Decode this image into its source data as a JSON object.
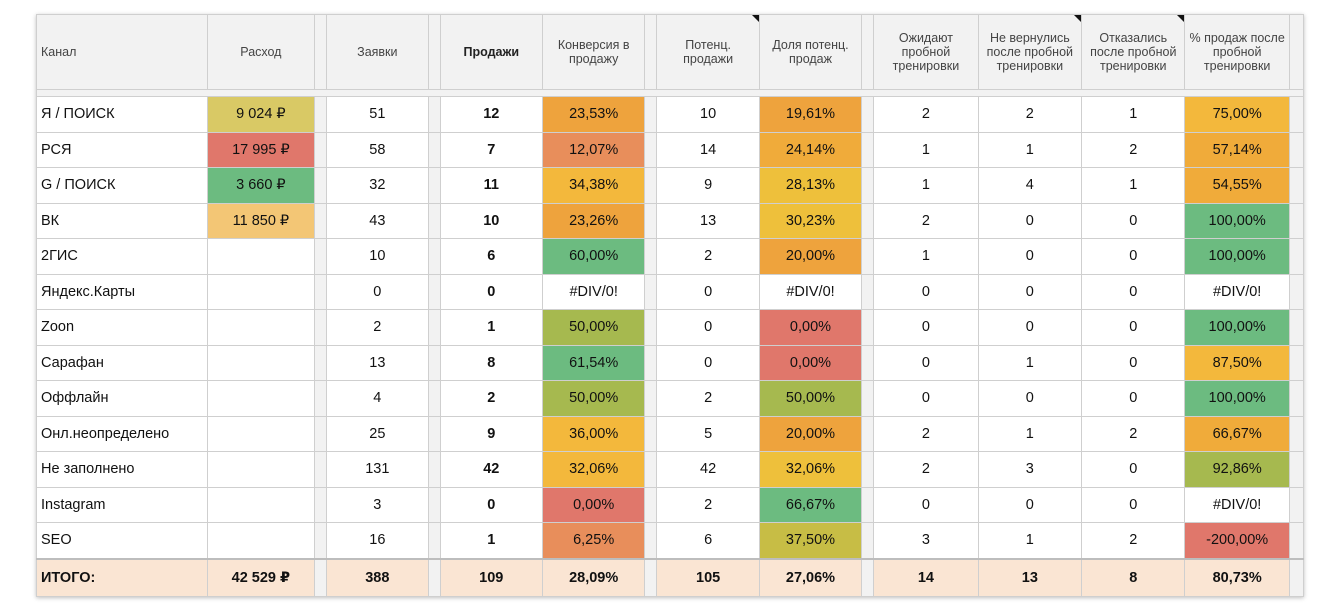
{
  "headers": {
    "channel": "Канал",
    "spend": "Расход",
    "leads": "Заявки",
    "sales": "Продажи",
    "conversion": "Конверсия в продажу",
    "potential": "Потенц. продажи",
    "potential_share": "Доля потенц. продаж",
    "waiting_trial": "Ожидают пробной тренировки",
    "not_returned": "Не вернулись после пробной тренировки",
    "refused": "Отказались после пробной тренировки",
    "pct_after_trial": "% продаж после пробной тренировки"
  },
  "rows": [
    {
      "channel": "Я / ПОИСК",
      "spend": "9 024 ₽",
      "spend_color": "#d9c965",
      "leads": "51",
      "sales": "12",
      "conversion": "23,53%",
      "conversion_color": "#eea33d",
      "potential": "10",
      "potential_share": "19,61%",
      "share_color": "#eea33d",
      "waiting": "2",
      "not_returned": "2",
      "refused": "1",
      "pct": "75,00%",
      "pct_color": "#f3b83c"
    },
    {
      "channel": "РСЯ",
      "spend": "17 995 ₽",
      "spend_color": "#e0776b",
      "leads": "58",
      "sales": "7",
      "conversion": "12,07%",
      "conversion_color": "#e88e5b",
      "potential": "14",
      "potential_share": "24,14%",
      "share_color": "#f0ab3a",
      "waiting": "1",
      "not_returned": "1",
      "refused": "2",
      "pct": "57,14%",
      "pct_color": "#f0ab3a"
    },
    {
      "channel": "G / ПОИСК",
      "spend": "3 660 ₽",
      "spend_color": "#6cbb80",
      "leads": "32",
      "sales": "11",
      "conversion": "34,38%",
      "conversion_color": "#f3b83c",
      "potential": "9",
      "potential_share": "28,13%",
      "share_color": "#eec03b",
      "waiting": "1",
      "not_returned": "4",
      "refused": "1",
      "pct": "54,55%",
      "pct_color": "#f0ab3a"
    },
    {
      "channel": "ВК",
      "spend": "11 850 ₽",
      "spend_color": "#f3c675",
      "leads": "43",
      "sales": "10",
      "conversion": "23,26%",
      "conversion_color": "#eea33d",
      "potential": "13",
      "potential_share": "30,23%",
      "share_color": "#eec03b",
      "waiting": "2",
      "not_returned": "0",
      "refused": "0",
      "pct": "100,00%",
      "pct_color": "#6cbb80"
    },
    {
      "channel": "2ГИС",
      "spend": "",
      "spend_color": "#ffffff",
      "leads": "10",
      "sales": "6",
      "conversion": "60,00%",
      "conversion_color": "#6cbb80",
      "potential": "2",
      "potential_share": "20,00%",
      "share_color": "#eea33d",
      "waiting": "1",
      "not_returned": "0",
      "refused": "0",
      "pct": "100,00%",
      "pct_color": "#6cbb80"
    },
    {
      "channel": "Яндекс.Карты",
      "spend": "",
      "spend_color": "#ffffff",
      "leads": "0",
      "sales": "0",
      "conversion": "#DIV/0!",
      "conversion_color": "#ffffff",
      "potential": "0",
      "potential_share": "#DIV/0!",
      "share_color": "#ffffff",
      "waiting": "0",
      "not_returned": "0",
      "refused": "0",
      "pct": "#DIV/0!",
      "pct_color": "#ffffff"
    },
    {
      "channel": "Zoon",
      "spend": "",
      "spend_color": "#ffffff",
      "leads": "2",
      "sales": "1",
      "conversion": "50,00%",
      "conversion_color": "#a6b94f",
      "potential": "0",
      "potential_share": "0,00%",
      "share_color": "#e0776b",
      "waiting": "0",
      "not_returned": "0",
      "refused": "0",
      "pct": "100,00%",
      "pct_color": "#6cbb80"
    },
    {
      "channel": "Сарафан",
      "spend": "",
      "spend_color": "#ffffff",
      "leads": "13",
      "sales": "8",
      "conversion": "61,54%",
      "conversion_color": "#6cbb80",
      "potential": "0",
      "potential_share": "0,00%",
      "share_color": "#e0776b",
      "waiting": "0",
      "not_returned": "1",
      "refused": "0",
      "pct": "87,50%",
      "pct_color": "#f3b83c"
    },
    {
      "channel": "Оффлайн",
      "spend": "",
      "spend_color": "#ffffff",
      "leads": "4",
      "sales": "2",
      "conversion": "50,00%",
      "conversion_color": "#a6b94f",
      "potential": "2",
      "potential_share": "50,00%",
      "share_color": "#a6b94f",
      "waiting": "0",
      "not_returned": "0",
      "refused": "0",
      "pct": "100,00%",
      "pct_color": "#6cbb80"
    },
    {
      "channel": "Онл.неопределено",
      "spend": "",
      "spend_color": "#ffffff",
      "leads": "25",
      "sales": "9",
      "conversion": "36,00%",
      "conversion_color": "#f3b83c",
      "potential": "5",
      "potential_share": "20,00%",
      "share_color": "#eea33d",
      "waiting": "2",
      "not_returned": "1",
      "refused": "2",
      "pct": "66,67%",
      "pct_color": "#f0ab3a"
    },
    {
      "channel": "Не заполнено",
      "spend": "",
      "spend_color": "#ffffff",
      "leads": "131",
      "sales": "42",
      "conversion": "32,06%",
      "conversion_color": "#f3b83c",
      "potential": "42",
      "potential_share": "32,06%",
      "share_color": "#eec03b",
      "waiting": "2",
      "not_returned": "3",
      "refused": "0",
      "pct": "92,86%",
      "pct_color": "#a6b94f"
    },
    {
      "channel": "Instagram",
      "spend": "",
      "spend_color": "#ffffff",
      "leads": "3",
      "sales": "0",
      "conversion": "0,00%",
      "conversion_color": "#e0776b",
      "potential": "2",
      "potential_share": "66,67%",
      "share_color": "#6cbb80",
      "waiting": "0",
      "not_returned": "0",
      "refused": "0",
      "pct": "#DIV/0!",
      "pct_color": "#ffffff"
    },
    {
      "channel": "SEO",
      "spend": "",
      "spend_color": "#ffffff",
      "leads": "16",
      "sales": "1",
      "conversion": "6,25%",
      "conversion_color": "#e88e5b",
      "potential": "6",
      "potential_share": "37,50%",
      "share_color": "#c7bd45",
      "waiting": "3",
      "not_returned": "1",
      "refused": "2",
      "pct": "-200,00%",
      "pct_color": "#e0776b"
    }
  ],
  "totals": {
    "channel": "ИТОГО:",
    "spend": "42 529 ₽",
    "leads": "388",
    "sales": "109",
    "conversion": "28,09%",
    "potential": "105",
    "potential_share": "27,06%",
    "waiting": "14",
    "not_returned": "13",
    "refused": "8",
    "pct": "80,73%"
  }
}
